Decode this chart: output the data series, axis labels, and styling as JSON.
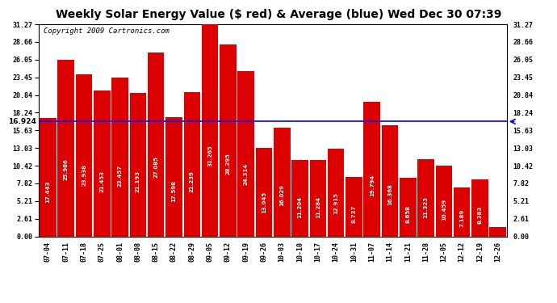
{
  "title": "Weekly Solar Energy Value ($ red) & Average (blue) Wed Dec 30 07:39",
  "copyright": "Copyright 2009 Cartronics.com",
  "average_value": 16.924,
  "bar_color": "#dd0000",
  "average_line_color": "blue",
  "background_color": "#ffffff",
  "plot_bg_color": "#ffffff",
  "categories": [
    "07-04",
    "07-11",
    "07-18",
    "07-25",
    "08-01",
    "08-08",
    "08-15",
    "08-22",
    "08-29",
    "09-05",
    "09-12",
    "09-19",
    "09-26",
    "10-03",
    "10-10",
    "10-17",
    "10-24",
    "10-31",
    "11-07",
    "11-14",
    "11-21",
    "11-28",
    "12-05",
    "12-12",
    "12-19",
    "12-26"
  ],
  "values": [
    17.443,
    25.986,
    23.938,
    21.453,
    23.457,
    21.193,
    27.085,
    17.598,
    21.239,
    31.265,
    28.295,
    24.314,
    13.045,
    16.029,
    11.204,
    11.284,
    12.915,
    8.737,
    19.794,
    16.368,
    8.658,
    11.323,
    10.459,
    7.189,
    8.383,
    1.364
  ],
  "ylim": [
    0,
    31.27
  ],
  "yticks": [
    0.0,
    2.61,
    5.21,
    7.82,
    10.42,
    13.03,
    15.63,
    18.24,
    20.84,
    23.45,
    26.05,
    28.66,
    31.27
  ],
  "title_fontsize": 10,
  "tick_fontsize": 6,
  "bar_value_fontsize": 5,
  "copyright_fontsize": 6.5
}
